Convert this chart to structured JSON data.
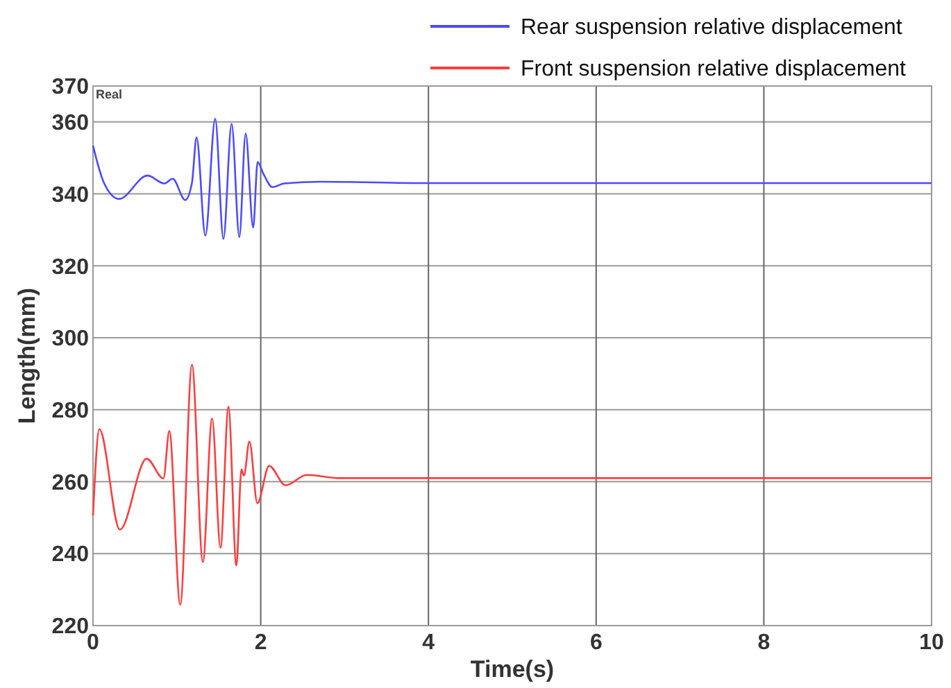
{
  "chart_data": {
    "type": "line",
    "xlabel": "Time(s)",
    "ylabel": "Length(mm)",
    "annotations": [
      "Real"
    ],
    "xlim": [
      0,
      10
    ],
    "xticks": [
      0,
      2,
      4,
      6,
      8,
      10
    ],
    "ylim": [
      220,
      370
    ],
    "yticks": [
      220,
      240,
      260,
      280,
      300,
      320,
      340,
      360,
      370
    ],
    "grid": true,
    "legend": "top right",
    "marker": "none",
    "line_style": "solid",
    "series": [
      {
        "name": "Rear suspension relative displacement",
        "color": "#4a4aff",
        "x": [
          0,
          0.13,
          0.31,
          0.65,
          0.85,
          0.95,
          1.1,
          1.18,
          1.235,
          1.34,
          1.457,
          1.555,
          1.653,
          1.745,
          1.82,
          1.91,
          1.963,
          2.03,
          2.14,
          2.28,
          2.71,
          4,
          6,
          8,
          10
        ],
        "values": [
          353.4,
          343.1,
          338.6,
          345.1,
          342.9,
          344.2,
          338.3,
          343.1,
          355.7,
          328.4,
          360.9,
          327.5,
          359.5,
          328,
          356.8,
          330.7,
          348.9,
          345.7,
          341.9,
          342.9,
          343.4,
          343,
          343,
          343,
          343
        ]
      },
      {
        "name": "Front suspension relative displacement",
        "color": "#ff3b3b",
        "x": [
          0,
          0.076,
          0.32,
          0.64,
          0.84,
          0.91,
          1.04,
          1.18,
          1.31,
          1.42,
          1.52,
          1.615,
          1.71,
          1.77,
          1.8,
          1.865,
          1.96,
          2.1,
          2.295,
          2.55,
          2.93,
          4,
          6,
          8,
          10
        ],
        "values": [
          250.6,
          274.6,
          246.7,
          266.4,
          260.9,
          274.1,
          225.8,
          292.5,
          237.7,
          277.6,
          241.6,
          280.8,
          236.7,
          263.4,
          261.7,
          271.2,
          254,
          264.4,
          259,
          261.9,
          261,
          261,
          261,
          261,
          261
        ]
      }
    ]
  }
}
